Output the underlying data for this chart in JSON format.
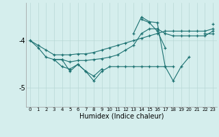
{
  "x": [
    0,
    1,
    2,
    3,
    4,
    5,
    6,
    7,
    8,
    9,
    10,
    11,
    12,
    13,
    14,
    15,
    16,
    17,
    18,
    19,
    20,
    21,
    22,
    23
  ],
  "line1": [
    -4.0,
    -4.1,
    -4.2,
    -4.3,
    -4.3,
    -4.3,
    -4.28,
    -4.28,
    -4.25,
    -4.2,
    -4.15,
    -4.1,
    -4.05,
    -4.0,
    -3.95,
    -3.9,
    -3.85,
    -3.8,
    -3.8,
    -3.8,
    -3.8,
    -3.8,
    -3.8,
    -3.75
  ],
  "line2": [
    -4.0,
    -4.15,
    -4.35,
    -4.4,
    -4.4,
    -4.45,
    -4.42,
    -4.42,
    -4.4,
    -4.38,
    -4.35,
    -4.3,
    -4.2,
    -4.1,
    -3.85,
    -3.75,
    -3.75,
    -3.85,
    -3.9,
    -3.9,
    -3.9,
    -3.9,
    -3.9,
    -3.8
  ],
  "line3": [
    null,
    null,
    null,
    -4.4,
    -4.4,
    -4.65,
    -4.5,
    -4.65,
    -4.85,
    -4.65,
    -4.55,
    -4.55,
    -4.55,
    -4.55,
    -4.55,
    -4.55,
    -4.55,
    -4.55,
    -4.55,
    null,
    null,
    null,
    null,
    null
  ],
  "line4": [
    null,
    null,
    null,
    -4.4,
    -4.55,
    -4.6,
    -4.5,
    -4.65,
    -4.75,
    -4.6,
    null,
    null,
    null,
    null,
    null,
    null,
    null,
    null,
    null,
    null,
    null,
    null,
    null,
    null
  ],
  "line5": [
    null,
    null,
    null,
    null,
    null,
    null,
    null,
    null,
    null,
    null,
    null,
    null,
    null,
    -3.85,
    -3.5,
    -3.6,
    -3.62,
    -4.55,
    -4.85,
    -4.55,
    -4.35,
    null,
    -3.85,
    -3.85
  ],
  "line6": [
    null,
    null,
    null,
    null,
    null,
    null,
    null,
    null,
    null,
    null,
    null,
    null,
    null,
    null,
    -3.55,
    -3.62,
    -3.8,
    -4.15,
    null,
    null,
    null,
    null,
    null,
    -3.65
  ],
  "bg_color": "#d5eeed",
  "line_color": "#1a7070",
  "grid_color": "#b8d8d5",
  "xlabel": "Humidex (Indice chaleur)",
  "yticks": [
    -5,
    -4
  ],
  "ylim": [
    -5.4,
    -3.2
  ],
  "xlim": [
    -0.5,
    23.5
  ]
}
